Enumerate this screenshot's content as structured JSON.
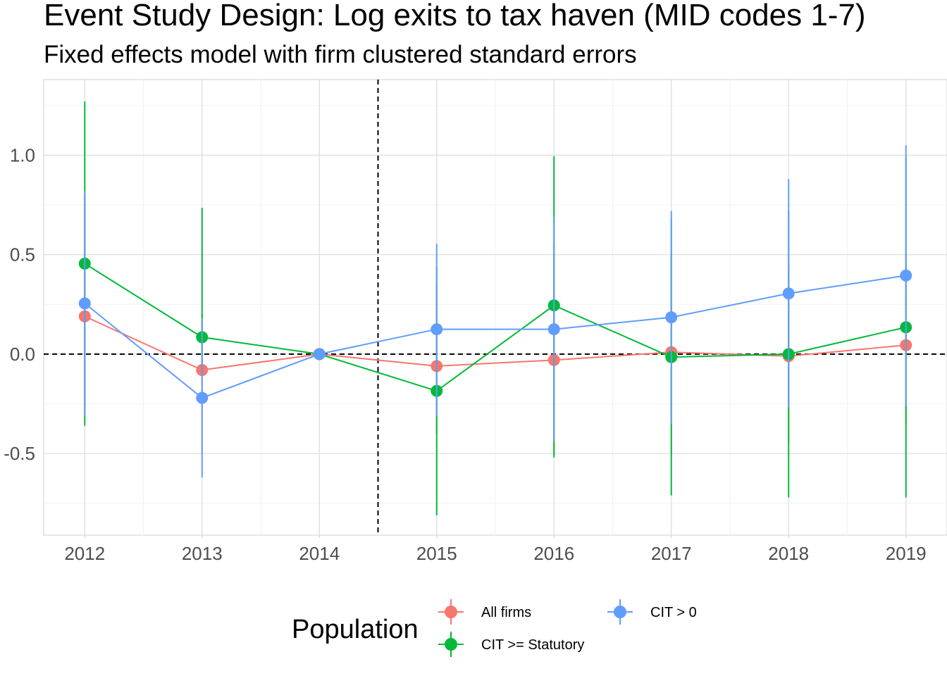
{
  "chart_data": {
    "type": "line",
    "title": "Event Study Design: Log exits to tax haven (MID codes 1-7)",
    "subtitle": "Fixed effects model with firm clustered standard errors",
    "xlabel": "",
    "ylabel": "",
    "x": [
      2012,
      2013,
      2014,
      2015,
      2016,
      2017,
      2018,
      2019
    ],
    "x_tick_labels": [
      "2012",
      "2013",
      "2014",
      "2015",
      "2016",
      "2017",
      "2018",
      "2019"
    ],
    "xlim": [
      2011.65,
      2019.35
    ],
    "y_ticks": [
      -0.5,
      0.0,
      0.5,
      1.0
    ],
    "y_tick_labels": [
      "-0.5",
      "0.0",
      "0.5",
      "1.0"
    ],
    "ylim": [
      -0.91,
      1.38
    ],
    "reference_lines": {
      "horizontal_y": 0.0,
      "vertical_x": 2014.5,
      "style": "dashed"
    },
    "grid": true,
    "legend": {
      "title": "Population",
      "position": "bottom"
    },
    "series": [
      {
        "name": "All firms",
        "color": "#F8766D",
        "values": [
          0.19,
          -0.08,
          0.0,
          -0.06,
          -0.03,
          0.01,
          -0.01,
          0.045
        ],
        "ci_low": [
          -0.3,
          -0.5,
          0.0,
          -0.4,
          -0.51,
          -0.5,
          -0.45,
          -0.35
        ],
        "ci_high": [
          0.8,
          0.2,
          0.0,
          0.35,
          0.55,
          0.5,
          0.45,
          0.5
        ]
      },
      {
        "name": "CIT >= Statutory",
        "color": "#00BA38",
        "values": [
          0.455,
          0.085,
          0.0,
          -0.185,
          0.245,
          -0.015,
          0.0,
          0.135
        ],
        "ci_low": [
          -0.36,
          -0.08,
          0.0,
          -0.81,
          -0.52,
          -0.71,
          -0.72,
          -0.72
        ],
        "ci_high": [
          1.27,
          0.735,
          0.0,
          0.44,
          0.995,
          0.68,
          0.72,
          0.99
        ]
      },
      {
        "name": "CIT > 0",
        "color": "#619CFF",
        "values": [
          0.255,
          -0.22,
          0.0,
          0.125,
          0.125,
          0.185,
          0.305,
          0.395
        ],
        "ci_low": [
          -0.31,
          -0.62,
          0.0,
          -0.31,
          -0.44,
          -0.35,
          -0.27,
          -0.26
        ],
        "ci_high": [
          0.82,
          0.18,
          0.0,
          0.555,
          0.69,
          0.72,
          0.88,
          1.05
        ]
      }
    ]
  }
}
